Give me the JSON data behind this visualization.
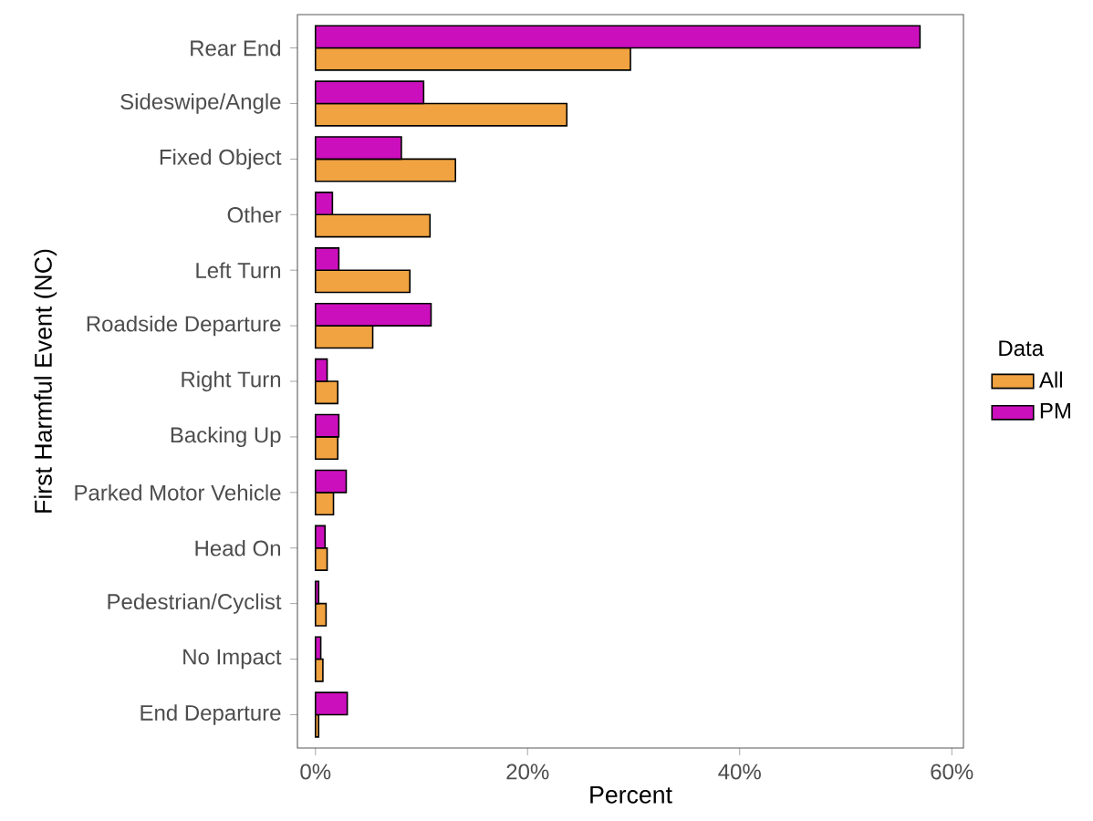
{
  "chart_data": {
    "type": "bar",
    "orientation": "horizontal",
    "xlabel": "Percent",
    "ylabel": "First Harmful Event (NC)",
    "legend_title": "Data",
    "legend": "right",
    "grid": false,
    "categories": [
      "Rear End",
      "Sideswipe/Angle",
      "Fixed Object",
      "Other",
      "Left Turn",
      "Roadside Departure",
      "Right Turn",
      "Backing Up",
      "Parked Motor Vehicle",
      "Head On",
      "Pedestrian/Cyclist",
      "No Impact",
      "End Departure"
    ],
    "series": [
      {
        "name": "All",
        "color": "#f0a340",
        "values": [
          29.7,
          23.7,
          13.2,
          10.8,
          8.9,
          5.4,
          2.1,
          2.1,
          1.7,
          1.1,
          1.0,
          0.7,
          0.3
        ]
      },
      {
        "name": "PM",
        "color": "#cc0fbd",
        "values": [
          57.0,
          10.2,
          8.1,
          1.6,
          2.2,
          10.9,
          1.1,
          2.2,
          2.9,
          0.9,
          0.3,
          0.5,
          3.0
        ]
      }
    ],
    "xlim": [
      -1.7,
      61.1
    ],
    "xticks": [
      {
        "value": 0,
        "label": "0%"
      },
      {
        "value": 20,
        "label": "20%"
      },
      {
        "value": 40,
        "label": "40%"
      },
      {
        "value": 60,
        "label": "60%"
      }
    ]
  }
}
